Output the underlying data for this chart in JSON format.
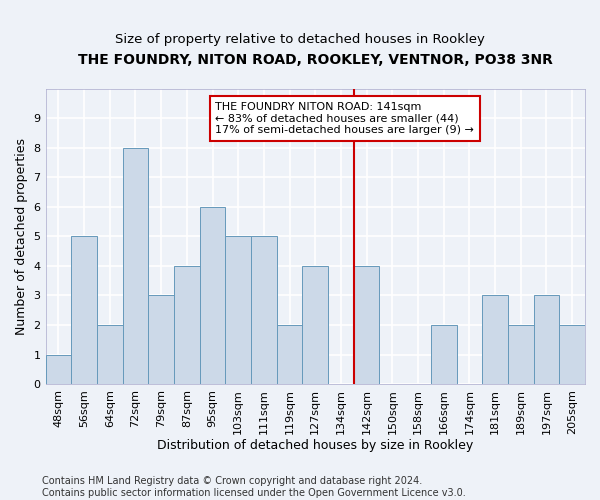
{
  "title": "THE FOUNDRY, NITON ROAD, ROOKLEY, VENTNOR, PO38 3NR",
  "subtitle": "Size of property relative to detached houses in Rookley",
  "xlabel": "Distribution of detached houses by size in Rookley",
  "ylabel": "Number of detached properties",
  "categories": [
    "48sqm",
    "56sqm",
    "64sqm",
    "72sqm",
    "79sqm",
    "87sqm",
    "95sqm",
    "103sqm",
    "111sqm",
    "119sqm",
    "127sqm",
    "134sqm",
    "142sqm",
    "150sqm",
    "158sqm",
    "166sqm",
    "174sqm",
    "181sqm",
    "189sqm",
    "197sqm",
    "205sqm"
  ],
  "values": [
    1,
    5,
    2,
    8,
    3,
    4,
    6,
    5,
    5,
    2,
    4,
    0,
    4,
    0,
    0,
    2,
    0,
    3,
    2,
    3,
    2
  ],
  "bar_color": "#ccd9e8",
  "bar_edge_color": "#6699bb",
  "highlight_line_index": 12,
  "annotation_text": "THE FOUNDRY NITON ROAD: 141sqm\n← 83% of detached houses are smaller (44)\n17% of semi-detached houses are larger (9) →",
  "annotation_box_edgecolor": "#cc0000",
  "annotation_box_facecolor": "#ffffff",
  "highlight_line_color": "#cc0000",
  "ylim": [
    0,
    10
  ],
  "yticks": [
    0,
    1,
    2,
    3,
    4,
    5,
    6,
    7,
    8,
    9
  ],
  "footer": "Contains HM Land Registry data © Crown copyright and database right 2024.\nContains public sector information licensed under the Open Government Licence v3.0.",
  "background_color": "#eef2f8",
  "grid_color": "#ffffff",
  "title_fontsize": 10,
  "subtitle_fontsize": 9.5,
  "xlabel_fontsize": 9,
  "ylabel_fontsize": 9,
  "tick_fontsize": 8,
  "footer_fontsize": 7,
  "annotation_fontsize": 8
}
